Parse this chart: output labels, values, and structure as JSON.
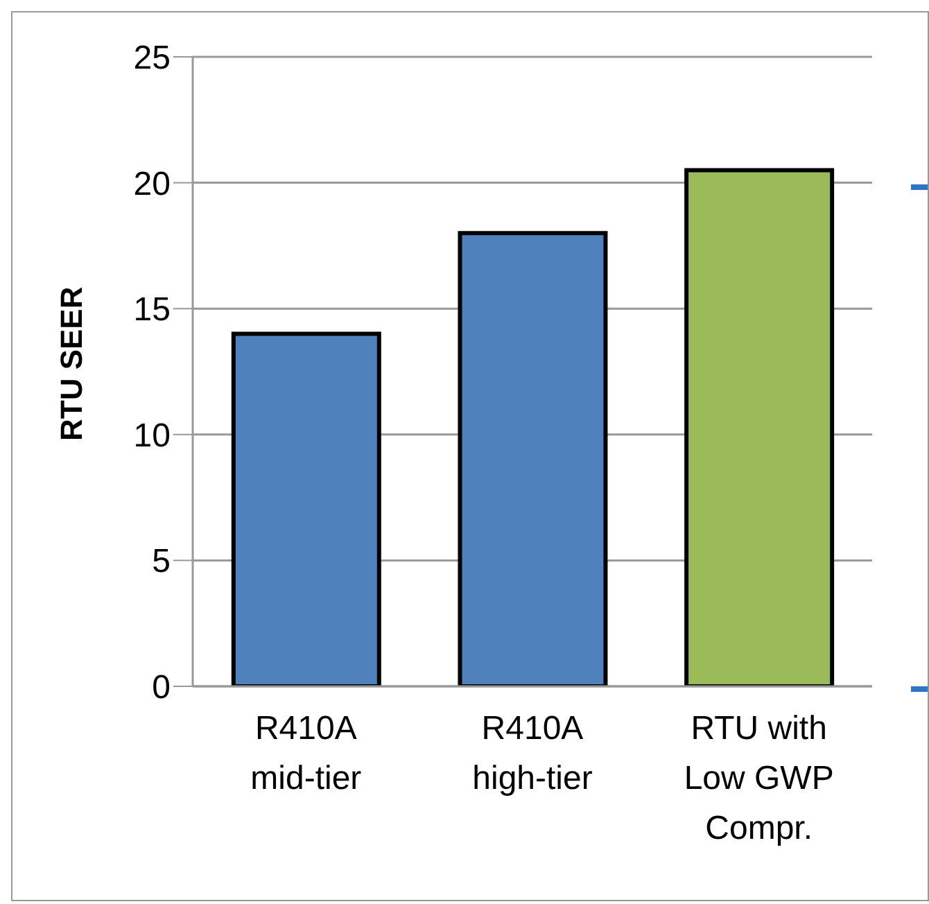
{
  "chart_data": {
    "type": "bar",
    "ylabel": "RTU SEER",
    "categories": [
      "R410A mid-tier",
      "R410A high-tier",
      "RTU with Low GWP Compr."
    ],
    "values": [
      14,
      18,
      20.5
    ],
    "colors": [
      "#4f81bd",
      "#4f81bd",
      "#9bbb59"
    ],
    "ylim": [
      0,
      25
    ],
    "yticks": [
      0,
      5,
      10,
      15,
      20,
      25
    ],
    "grid": "y",
    "legend": false
  }
}
